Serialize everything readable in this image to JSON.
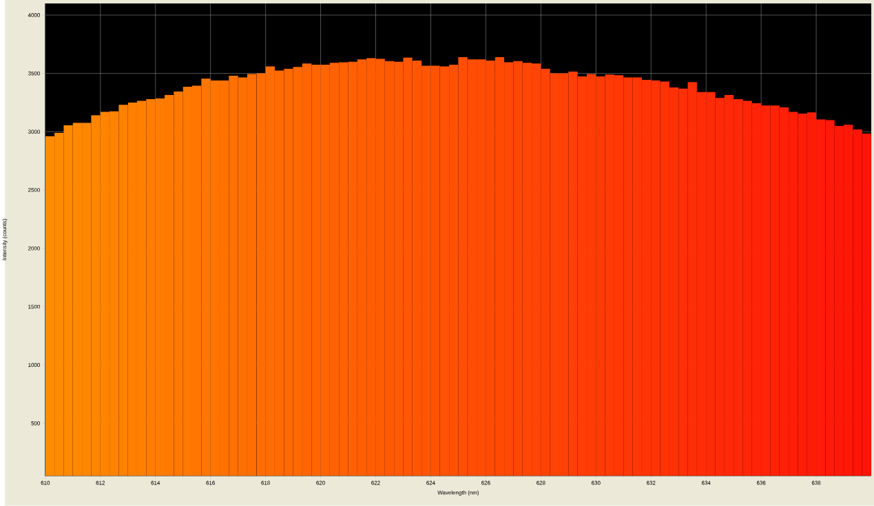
{
  "chart_data": {
    "type": "histogram",
    "xlabel": "Wavelength (nm)",
    "ylabel": "Intensity (counts)",
    "bins": [
      610,
      610.333,
      610.667,
      611,
      611.333,
      611.667,
      612,
      612.333,
      612.667,
      613,
      613.333,
      613.667,
      614,
      614.333,
      614.667,
      615,
      615.333,
      615.667,
      616,
      616.333,
      616.667,
      617,
      617.333,
      617.667,
      618,
      618.333,
      618.667,
      619,
      619.333,
      619.667,
      620,
      620.333,
      620.667,
      621,
      621.333,
      621.667,
      622,
      622.333,
      622.667,
      623,
      623.333,
      623.667,
      624,
      624.333,
      624.667,
      625,
      625.333,
      625.667,
      626,
      626.333,
      626.667,
      627,
      627.333,
      627.667,
      628,
      628.333,
      628.667,
      629,
      629.333,
      629.667,
      630,
      630.333,
      630.667,
      631,
      631.333,
      631.667,
      632,
      632.333,
      632.667,
      633,
      633.333,
      633.667,
      634,
      634.333,
      634.667,
      635,
      635.333,
      635.667,
      636,
      636.333,
      636.667,
      637,
      637.333,
      637.667,
      638,
      638.333,
      638.667,
      639,
      639.333,
      639.667,
      640
    ],
    "values": [
      2960,
      2990,
      3055,
      3075,
      3075,
      3140,
      3170,
      3175,
      3230,
      3250,
      3265,
      3280,
      3285,
      3315,
      3345,
      3385,
      3395,
      3455,
      3440,
      3440,
      3480,
      3465,
      3495,
      3500,
      3560,
      3525,
      3540,
      3555,
      3585,
      3575,
      3575,
      3590,
      3595,
      3600,
      3620,
      3630,
      3625,
      3605,
      3600,
      3635,
      3610,
      3565,
      3565,
      3560,
      3575,
      3640,
      3620,
      3620,
      3610,
      3640,
      3595,
      3605,
      3590,
      3585,
      3540,
      3500,
      3500,
      3515,
      3475,
      3495,
      3475,
      3490,
      3485,
      3465,
      3465,
      3445,
      3440,
      3430,
      3380,
      3370,
      3425,
      3340,
      3340,
      3290,
      3315,
      3280,
      3265,
      3245,
      3225,
      3225,
      3210,
      3170,
      3155,
      3165,
      3105,
      3100,
      3050,
      3060,
      3020,
      2985
    ],
    "colors": [
      "#ff8c00",
      "#ff8b00",
      "#ff8900",
      "#ff8800",
      "#ff8700",
      "#ff8500",
      "#ff8400",
      "#ff8300",
      "#ff8100",
      "#ff8000",
      "#ff7f01",
      "#ff7d01",
      "#ff7c01",
      "#ff7a01",
      "#ff7901",
      "#ff7801",
      "#ff7601",
      "#ff7502",
      "#ff7402",
      "#ff7202",
      "#ff7102",
      "#ff7002",
      "#ff6e02",
      "#ff6d02",
      "#ff6c02",
      "#ff6a02",
      "#ff6902",
      "#ff6802",
      "#ff6603",
      "#ff6503",
      "#ff6403",
      "#ff6203",
      "#ff6103",
      "#ff6003",
      "#ff5e03",
      "#ff5d03",
      "#ff5b03",
      "#ff5a03",
      "#ff5903",
      "#ff5704",
      "#ff5604",
      "#ff5504",
      "#ff5304",
      "#ff5204",
      "#ff5104",
      "#ff4f04",
      "#ff4e04",
      "#ff4d04",
      "#ff4b04",
      "#ff4a04",
      "#ff4905",
      "#ff4705",
      "#ff4605",
      "#ff4505",
      "#ff4305",
      "#ff4205",
      "#ff4105",
      "#ff3f05",
      "#ff3e05",
      "#ff3c05",
      "#ff3b05",
      "#ff3a05",
      "#ff3806",
      "#ff3706",
      "#ff3606",
      "#ff3406",
      "#ff3306",
      "#ff3206",
      "#ff3006",
      "#ff2f06",
      "#ff2e06",
      "#ff2c06",
      "#ff2b06",
      "#ff2a07",
      "#ff2807",
      "#ff2707",
      "#ff2607",
      "#ff2407",
      "#ff2307",
      "#ff2207",
      "#ff2007",
      "#ff1f07",
      "#ff1d07",
      "#ff1c07",
      "#ff1b08",
      "#ff1908",
      "#ff1808",
      "#ff1708",
      "#ff1508",
      "#ff1408"
    ],
    "xlim": [
      610,
      640
    ],
    "ylim": [
      50,
      4100
    ],
    "xticks": [
      610,
      612,
      614,
      616,
      618,
      620,
      622,
      624,
      626,
      628,
      630,
      632,
      634,
      636,
      638
    ],
    "yticks": [
      500,
      1000,
      1500,
      2000,
      2500,
      3000,
      3500,
      4000
    ],
    "grid": true
  }
}
